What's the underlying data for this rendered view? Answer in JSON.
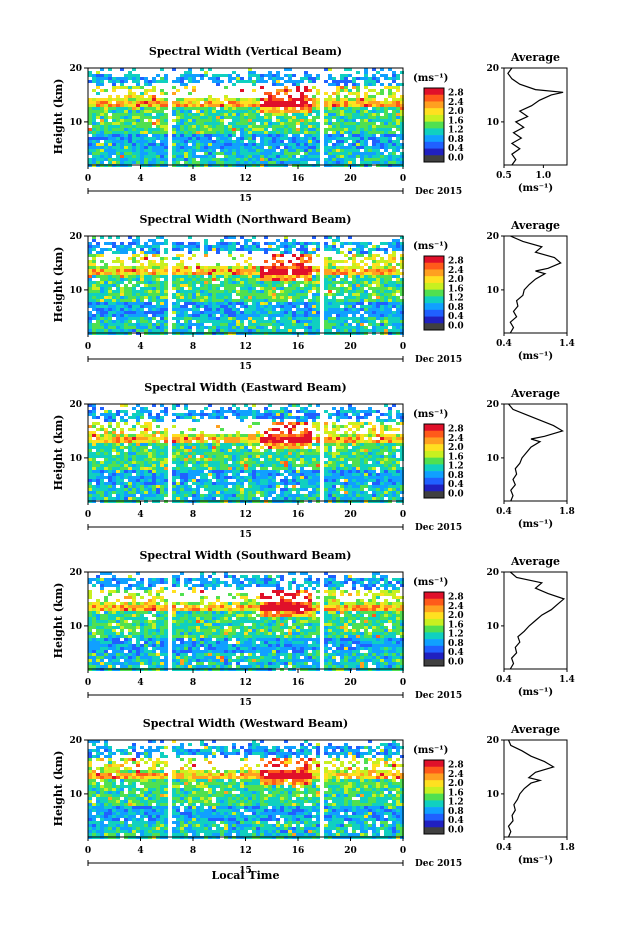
{
  "colorbar": {
    "unit": "(ms⁻¹)",
    "labels": [
      "2.8",
      "2.4",
      "2.0",
      "1.6",
      "1.2",
      "0.8",
      "0.4",
      "0.0"
    ],
    "colors": [
      "#e0102a",
      "#ff5a1a",
      "#ffa020",
      "#ffe020",
      "#c8f020",
      "#50e050",
      "#10d0c0",
      "#10a0ff",
      "#2060ff",
      "#2020c0",
      "#404040"
    ]
  },
  "xaxis_label": "Local Time",
  "date_label": "Dec 2015",
  "day_label": "15",
  "chart_data": [
    {
      "type": "heatmap",
      "title": "Spectral Width (Vertical Beam)",
      "ylabel": "Height (km)",
      "x_ticks": [
        "0",
        "4",
        "8",
        "12",
        "16",
        "20",
        "0"
      ],
      "y_ticks": [
        "20",
        "10"
      ],
      "xlim": [
        0,
        24
      ],
      "ylim": [
        2,
        20
      ],
      "avg_title": "Average",
      "avg_xlabel": "(ms⁻¹)",
      "avg_xticks": [
        "0.5",
        "1.0"
      ],
      "avg_xlim": [
        0.5,
        1.3
      ],
      "profile": [
        [
          0.6,
          2
        ],
        [
          0.65,
          3
        ],
        [
          0.6,
          4
        ],
        [
          0.7,
          5
        ],
        [
          0.6,
          6
        ],
        [
          0.72,
          7
        ],
        [
          0.62,
          8
        ],
        [
          0.75,
          9
        ],
        [
          0.65,
          10
        ],
        [
          0.8,
          11
        ],
        [
          0.7,
          12
        ],
        [
          0.85,
          13
        ],
        [
          0.95,
          14
        ],
        [
          1.1,
          15
        ],
        [
          1.25,
          15.5
        ],
        [
          0.9,
          16
        ],
        [
          0.7,
          17
        ],
        [
          0.6,
          18
        ],
        [
          0.55,
          19
        ],
        [
          0.6,
          20
        ]
      ]
    },
    {
      "type": "heatmap",
      "title": "Spectral Width (Northward Beam)",
      "ylabel": "Height (km)",
      "x_ticks": [
        "0",
        "4",
        "8",
        "12",
        "16",
        "20",
        "0"
      ],
      "y_ticks": [
        "20",
        "10"
      ],
      "xlim": [
        0,
        24
      ],
      "ylim": [
        2,
        20
      ],
      "avg_title": "Average",
      "avg_xlabel": "(ms⁻¹)",
      "avg_xticks": [
        "0.4",
        "1.4"
      ],
      "avg_xlim": [
        0.4,
        1.4
      ],
      "profile": [
        [
          0.5,
          2
        ],
        [
          0.55,
          3
        ],
        [
          0.5,
          4
        ],
        [
          0.6,
          5
        ],
        [
          0.55,
          6
        ],
        [
          0.62,
          7
        ],
        [
          0.6,
          8
        ],
        [
          0.7,
          9
        ],
        [
          0.72,
          10
        ],
        [
          0.8,
          11
        ],
        [
          0.9,
          12
        ],
        [
          1.05,
          13
        ],
        [
          0.9,
          13.5
        ],
        [
          1.1,
          14
        ],
        [
          1.3,
          15
        ],
        [
          1.2,
          16
        ],
        [
          0.9,
          17
        ],
        [
          1.0,
          18
        ],
        [
          0.7,
          19
        ],
        [
          0.5,
          20
        ]
      ]
    },
    {
      "type": "heatmap",
      "title": "Spectral Width (Eastward Beam)",
      "ylabel": "Height (km)",
      "x_ticks": [
        "0",
        "4",
        "8",
        "12",
        "16",
        "20",
        "0"
      ],
      "y_ticks": [
        "20",
        "10"
      ],
      "xlim": [
        0,
        24
      ],
      "ylim": [
        2,
        20
      ],
      "avg_title": "Average",
      "avg_xlabel": "(ms⁻¹)",
      "avg_xticks": [
        "0.4",
        "1.8"
      ],
      "avg_xlim": [
        0.4,
        1.8
      ],
      "profile": [
        [
          0.55,
          2
        ],
        [
          0.6,
          3
        ],
        [
          0.55,
          4
        ],
        [
          0.65,
          5
        ],
        [
          0.6,
          6
        ],
        [
          0.68,
          7
        ],
        [
          0.65,
          8
        ],
        [
          0.75,
          9
        ],
        [
          0.8,
          10
        ],
        [
          0.9,
          11
        ],
        [
          1.0,
          12
        ],
        [
          1.2,
          13
        ],
        [
          1.0,
          13.5
        ],
        [
          1.3,
          14
        ],
        [
          1.7,
          15
        ],
        [
          1.5,
          16
        ],
        [
          1.2,
          17
        ],
        [
          0.9,
          18
        ],
        [
          0.6,
          19
        ],
        [
          0.5,
          20
        ]
      ]
    },
    {
      "type": "heatmap",
      "title": "Spectral Width (Southward Beam)",
      "ylabel": "Height (km)",
      "x_ticks": [
        "0",
        "4",
        "8",
        "12",
        "16",
        "20",
        "0"
      ],
      "y_ticks": [
        "20",
        "10"
      ],
      "xlim": [
        0,
        24
      ],
      "ylim": [
        2,
        20
      ],
      "avg_title": "Average",
      "avg_xlabel": "(ms⁻¹)",
      "avg_xticks": [
        "0.4",
        "1.4"
      ],
      "avg_xlim": [
        0.4,
        1.4
      ],
      "profile": [
        [
          0.5,
          2
        ],
        [
          0.55,
          3
        ],
        [
          0.52,
          4
        ],
        [
          0.6,
          5
        ],
        [
          0.58,
          6
        ],
        [
          0.65,
          7
        ],
        [
          0.62,
          8
        ],
        [
          0.72,
          9
        ],
        [
          0.8,
          10
        ],
        [
          0.9,
          11
        ],
        [
          1.0,
          12
        ],
        [
          1.15,
          13
        ],
        [
          1.25,
          14
        ],
        [
          1.35,
          15
        ],
        [
          1.1,
          16
        ],
        [
          0.9,
          17
        ],
        [
          1.0,
          18
        ],
        [
          0.6,
          19
        ],
        [
          0.5,
          20
        ]
      ]
    },
    {
      "type": "heatmap",
      "title": "Spectral Width (Westward Beam)",
      "ylabel": "Height (km)",
      "x_ticks": [
        "0",
        "4",
        "8",
        "12",
        "16",
        "20",
        "0"
      ],
      "y_ticks": [
        "20",
        "10"
      ],
      "xlim": [
        0,
        24
      ],
      "ylim": [
        2,
        20
      ],
      "avg_title": "Average",
      "avg_xlabel": "(ms⁻¹)",
      "avg_xticks": [
        "0.4",
        "1.8"
      ],
      "avg_xlim": [
        0.4,
        1.8
      ],
      "profile": [
        [
          0.5,
          2
        ],
        [
          0.55,
          3
        ],
        [
          0.5,
          4
        ],
        [
          0.6,
          5
        ],
        [
          0.58,
          6
        ],
        [
          0.65,
          7
        ],
        [
          0.62,
          8
        ],
        [
          0.7,
          9
        ],
        [
          0.75,
          10
        ],
        [
          0.85,
          11
        ],
        [
          1.0,
          12
        ],
        [
          1.2,
          12.5
        ],
        [
          0.95,
          13
        ],
        [
          1.1,
          14
        ],
        [
          1.5,
          15
        ],
        [
          1.3,
          16
        ],
        [
          1.0,
          17
        ],
        [
          0.8,
          18
        ],
        [
          0.55,
          19
        ],
        [
          0.5,
          20
        ]
      ]
    }
  ]
}
